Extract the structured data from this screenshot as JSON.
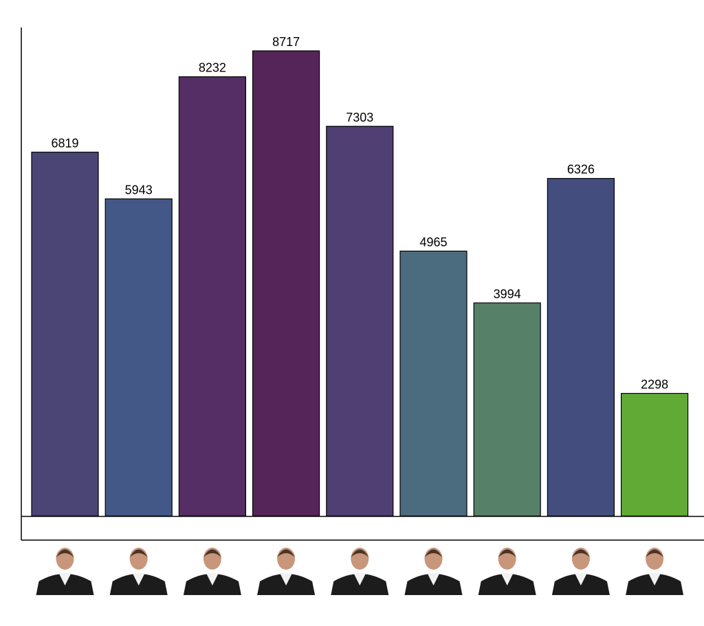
{
  "chart_data": {
    "type": "bar",
    "categories": [
      "",
      "",
      "",
      "",
      "",
      "",
      "",
      "",
      ""
    ],
    "values": [
      6819,
      5943,
      8232,
      8717,
      7303,
      4965,
      3994,
      6326,
      2298
    ],
    "data_labels": [
      "6819",
      "5943",
      "8232",
      "8717",
      "7303",
      "4965",
      "3994",
      "6326",
      "2298"
    ],
    "bar_colors": [
      "#4a4574",
      "#435886",
      "#562e66",
      "#55255a",
      "#503f73",
      "#4b6b7f",
      "#578069",
      "#444e7e",
      "#61aa36"
    ],
    "title": "",
    "xlabel": "",
    "ylabel": "",
    "ylim": [
      0,
      9000
    ],
    "grid": false,
    "legend": "none",
    "x_tick_icons": [
      "portrait-icon",
      "portrait-icon",
      "portrait-icon",
      "portrait-icon",
      "portrait-icon",
      "portrait-icon",
      "portrait-icon",
      "portrait-icon",
      "portrait-icon"
    ],
    "portrait_colors": {
      "robe": "#1c1c1c",
      "shirt": "#f2f2f2",
      "skin": "#c8967a",
      "hair": "#4a3428"
    }
  }
}
